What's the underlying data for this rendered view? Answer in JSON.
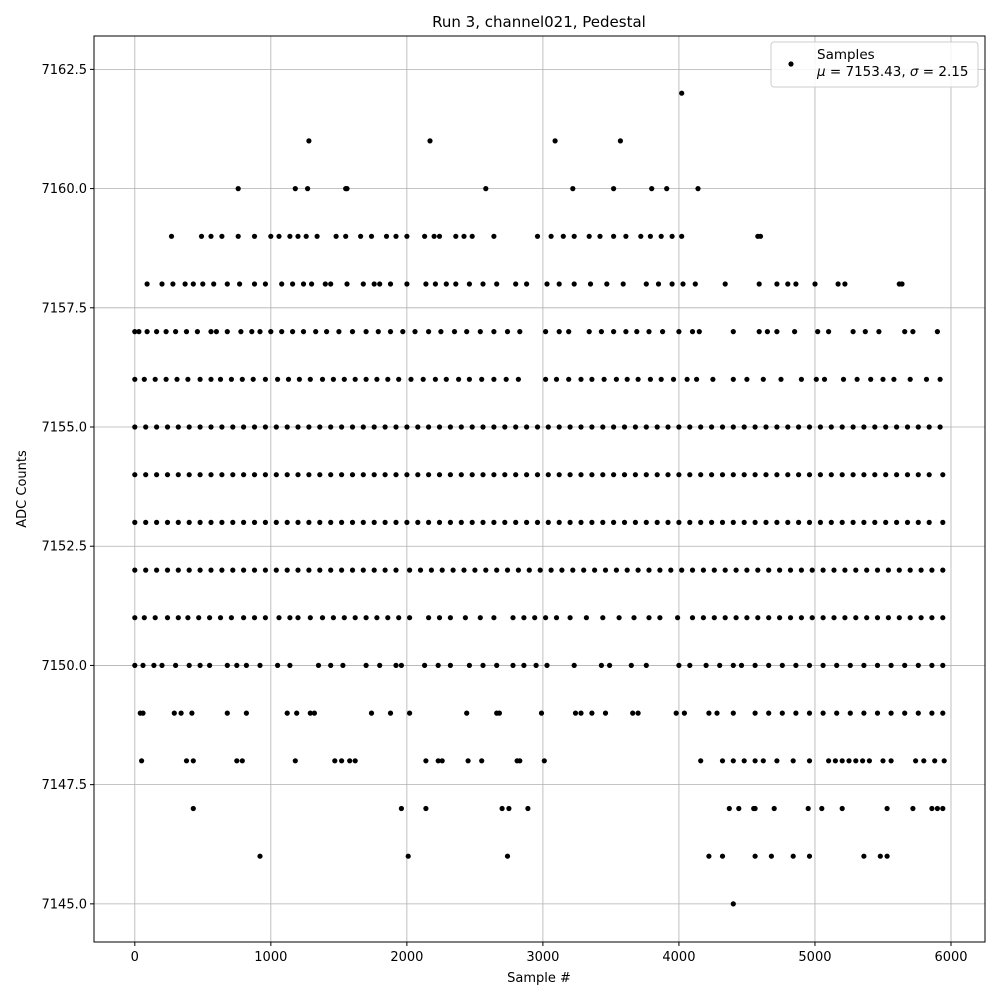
{
  "chart_data": {
    "type": "scatter",
    "title": "Run 3, channel021, Pedestal",
    "xlabel": "Sample #",
    "ylabel": "ADC Counts",
    "xlim": [
      -300,
      6250
    ],
    "ylim": [
      7144.2,
      7163.2
    ],
    "xticks": [
      0,
      1000,
      2000,
      3000,
      4000,
      5000,
      6000
    ],
    "yticks": [
      7145.0,
      7147.5,
      7150.0,
      7152.5,
      7155.0,
      7157.5,
      7160.0,
      7162.5
    ],
    "ytick_labels": [
      "7145.0",
      "7147.5",
      "7150.0",
      "7152.5",
      "7155.0",
      "7157.5",
      "7160.0",
      "7162.5"
    ],
    "grid": true,
    "legend_position": "top-right",
    "series": [
      {
        "name": "Samples",
        "color": "#000000",
        "marker": "circle",
        "levels": [
          {
            "y": 7162,
            "x": [
              4020
            ]
          },
          {
            "y": 7161,
            "x": [
              1280,
              2170,
              3090,
              3570
            ]
          },
          {
            "y": 7160,
            "x": [
              760,
              1180,
              1270,
              1550,
              1560,
              2580,
              3220,
              3520,
              3800,
              3910,
              4140
            ]
          },
          {
            "y": 7159,
            "x": [
              270,
              490,
              560,
              640,
              760,
              880,
              1000,
              1060,
              1140,
              1200,
              1260,
              1340,
              1480,
              1550,
              1660,
              1740,
              1850,
              1920,
              2000,
              2130,
              2200,
              2240,
              2360,
              2420,
              2480,
              2640,
              2960,
              3060,
              3150,
              3230,
              3340,
              3420,
              3520,
              3610,
              3720,
              3790,
              3870,
              3950,
              4020,
              4580,
              4600
            ]
          },
          {
            "y": 7158,
            "x": [
              90,
              200,
              280,
              370,
              430,
              500,
              580,
              680,
              770,
              880,
              960,
              1080,
              1160,
              1240,
              1300,
              1400,
              1440,
              1560,
              1680,
              1760,
              1800,
              1880,
              2000,
              2140,
              2210,
              2290,
              2360,
              2460,
              2560,
              2660,
              2800,
              2880,
              3030,
              3120,
              3230,
              3350,
              3470,
              3590,
              3760,
              3850,
              3950,
              4030,
              4120,
              4340,
              4590,
              4720,
              4800,
              4860,
              5000,
              5170,
              5220,
              5620,
              5640
            ]
          },
          {
            "y": 7157,
            "x": [
              0,
              30,
              90,
              160,
              230,
              300,
              380,
              460,
              560,
              600,
              680,
              780,
              860,
              920,
              1000,
              1080,
              1160,
              1240,
              1330,
              1410,
              1500,
              1600,
              1700,
              1790,
              1880,
              1970,
              2060,
              2160,
              2250,
              2350,
              2440,
              2540,
              2640,
              2740,
              2830,
              3020,
              3120,
              3190,
              3340,
              3430,
              3520,
              3610,
              3690,
              3780,
              3880,
              4000,
              4100,
              4150,
              4400,
              4590,
              4650,
              4720,
              4850,
              5020,
              5100,
              5280,
              5370,
              5470,
              5660,
              5720,
              5900
            ]
          },
          {
            "y": 7156,
            "x": [
              0,
              70,
              150,
              230,
              310,
              390,
              480,
              560,
              630,
              710,
              790,
              870,
              960,
              1050,
              1130,
              1210,
              1290,
              1380,
              1460,
              1540,
              1620,
              1700,
              1780,
              1860,
              1940,
              2030,
              2120,
              2210,
              2290,
              2380,
              2460,
              2550,
              2640,
              2730,
              2820,
              3020,
              3100,
              3190,
              3280,
              3360,
              3450,
              3540,
              3620,
              3700,
              3790,
              3870,
              3960,
              4060,
              4130,
              4250,
              4400,
              4500,
              4620,
              4750,
              4900,
              5010,
              5070,
              5210,
              5310,
              5410,
              5500,
              5580,
              5700,
              5820,
              5920
            ]
          },
          {
            "y": 7155,
            "x": [
              0,
              80,
              160,
              240,
              320,
              400,
              480,
              560,
              640,
              720,
              800,
              880,
              960,
              1040,
              1120,
              1200,
              1280,
              1360,
              1440,
              1520,
              1600,
              1680,
              1760,
              1840,
              1920,
              2000,
              2080,
              2160,
              2240,
              2320,
              2400,
              2480,
              2560,
              2640,
              2720,
              2800,
              2880,
              2960,
              3040,
              3120,
              3200,
              3280,
              3360,
              3440,
              3520,
              3600,
              3680,
              3760,
              3840,
              3920,
              4000,
              4080,
              4160,
              4240,
              4320,
              4400,
              4480,
              4560,
              4640,
              4720,
              4800,
              4880,
              4960,
              5040,
              5120,
              5200,
              5280,
              5360,
              5440,
              5520,
              5600,
              5680,
              5760,
              5840,
              5920
            ]
          },
          {
            "y": 7154,
            "x": [
              0,
              80,
              160,
              240,
              320,
              400,
              480,
              560,
              640,
              720,
              800,
              880,
              960,
              1040,
              1120,
              1200,
              1280,
              1360,
              1440,
              1520,
              1600,
              1680,
              1760,
              1840,
              1920,
              2000,
              2080,
              2160,
              2240,
              2320,
              2400,
              2480,
              2560,
              2640,
              2720,
              2800,
              2880,
              2960,
              3040,
              3120,
              3200,
              3280,
              3360,
              3440,
              3520,
              3600,
              3680,
              3760,
              3840,
              3920,
              4000,
              4080,
              4160,
              4240,
              4320,
              4400,
              4480,
              4560,
              4640,
              4720,
              4800,
              4880,
              4960,
              5040,
              5120,
              5200,
              5280,
              5360,
              5440,
              5520,
              5600,
              5680,
              5760,
              5840,
              5940
            ]
          },
          {
            "y": 7153,
            "x": [
              0,
              80,
              160,
              240,
              320,
              400,
              480,
              560,
              640,
              720,
              800,
              880,
              960,
              1040,
              1120,
              1200,
              1280,
              1360,
              1440,
              1520,
              1600,
              1680,
              1760,
              1840,
              1920,
              2000,
              2080,
              2160,
              2240,
              2320,
              2400,
              2480,
              2560,
              2640,
              2720,
              2800,
              2880,
              2960,
              3040,
              3120,
              3200,
              3280,
              3360,
              3440,
              3520,
              3600,
              3680,
              3760,
              3840,
              3920,
              4000,
              4080,
              4160,
              4240,
              4320,
              4400,
              4480,
              4560,
              4640,
              4720,
              4800,
              4880,
              4960,
              5040,
              5120,
              5200,
              5280,
              5360,
              5440,
              5520,
              5600,
              5680,
              5760,
              5840,
              5940
            ]
          },
          {
            "y": 7152,
            "x": [
              0,
              80,
              160,
              240,
              320,
              400,
              480,
              560,
              640,
              720,
              800,
              880,
              960,
              1040,
              1120,
              1200,
              1280,
              1360,
              1440,
              1520,
              1600,
              1680,
              1760,
              1840,
              1920,
              2020,
              2100,
              2180,
              2260,
              2340,
              2420,
              2500,
              2580,
              2660,
              2740,
              2820,
              2900,
              2980,
              3060,
              3140,
              3220,
              3300,
              3380,
              3460,
              3540,
              3620,
              3700,
              3780,
              3860,
              3940,
              4020,
              4100,
              4180,
              4260,
              4340,
              4420,
              4500,
              4580,
              4660,
              4740,
              4820,
              4900,
              4980,
              5060,
              5140,
              5220,
              5300,
              5380,
              5460,
              5540,
              5620,
              5700,
              5780,
              5860,
              5940
            ]
          },
          {
            "y": 7151,
            "x": [
              0,
              70,
              150,
              240,
              320,
              390,
              470,
              550,
              630,
              710,
              800,
              880,
              960,
              1060,
              1140,
              1200,
              1290,
              1380,
              1460,
              1540,
              1620,
              1700,
              1780,
              1860,
              1940,
              2020,
              2160,
              2240,
              2320,
              2430,
              2540,
              2640,
              2780,
              2860,
              2940,
              3020,
              3100,
              3200,
              3320,
              3440,
              3560,
              3670,
              3780,
              3860,
              3990,
              4100,
              4180,
              4260,
              4340,
              4420,
              4500,
              4580,
              4660,
              4740,
              4820,
              4900,
              4980,
              5060,
              5140,
              5220,
              5300,
              5380,
              5460,
              5540,
              5620,
              5700,
              5780,
              5860,
              5940
            ]
          },
          {
            "y": 7150,
            "x": [
              0,
              60,
              140,
              200,
              300,
              400,
              480,
              550,
              680,
              750,
              820,
              920,
              1050,
              1140,
              1350,
              1440,
              1530,
              1700,
              1800,
              1920,
              1960,
              2130,
              2230,
              2320,
              2460,
              2560,
              2660,
              2780,
              2860,
              2950,
              3030,
              3230,
              3430,
              3490,
              3650,
              3760,
              4000,
              4080,
              4200,
              4300,
              4400,
              4460,
              4560,
              4660,
              4760,
              4860,
              4960,
              5060,
              5160,
              5260,
              5360,
              5460,
              5560,
              5660,
              5760,
              5860,
              5940
            ]
          },
          {
            "y": 7149,
            "x": [
              40,
              60,
              290,
              340,
              420,
              680,
              820,
              1120,
              1190,
              1290,
              1320,
              1740,
              1880,
              2020,
              2440,
              2660,
              2680,
              2990,
              3240,
              3280,
              3360,
              3460,
              3660,
              3700,
              3980,
              4040,
              4220,
              4280,
              4400,
              4560,
              4660,
              4760,
              4860,
              4960,
              5060,
              5160,
              5260,
              5360,
              5460,
              5560,
              5660,
              5760,
              5860,
              5940
            ]
          },
          {
            "y": 7148,
            "x": [
              50,
              380,
              430,
              750,
              790,
              1180,
              1470,
              1520,
              1580,
              1620,
              2140,
              2230,
              2260,
              2450,
              2550,
              2810,
              2830,
              3010,
              4160,
              4320,
              4400,
              4480,
              4560,
              4620,
              4720,
              4840,
              4960,
              5100,
              5150,
              5200,
              5250,
              5300,
              5350,
              5400,
              5500,
              5560,
              5740,
              5800,
              5880,
              5950
            ]
          },
          {
            "y": 7147,
            "x": [
              430,
              1960,
              2140,
              2700,
              2750,
              2890,
              4370,
              4440,
              4550,
              4560,
              4700,
              4950,
              5050,
              5200,
              5530,
              5720,
              5860,
              5900,
              5940
            ]
          },
          {
            "y": 7146,
            "x": [
              920,
              2010,
              2740,
              4220,
              4320,
              4560,
              4680,
              4840,
              4960,
              5360,
              5480,
              5530
            ]
          },
          {
            "y": 7145,
            "x": [
              4400
            ]
          }
        ]
      }
    ],
    "legend": {
      "marker_label": "Samples",
      "stats_label": "μ = 7153.43, σ = 2.15"
    }
  }
}
